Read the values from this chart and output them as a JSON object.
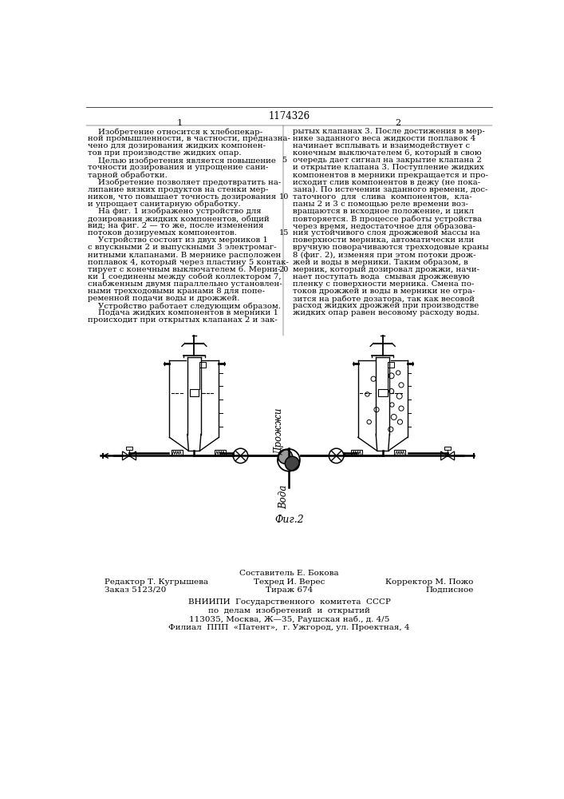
{
  "patent_number": "1174326",
  "col1_header": "1",
  "col2_header": "2",
  "col1_text": [
    "    Изобретение относится к хлебопекар-",
    "ной промышленности, в частности, предназна-",
    "чено для дозирования жидких компонен-",
    "тов при производстве жидких опар.",
    "    Целью изобретения является повышение",
    "точности дозирования и упрощение сани-",
    "тарной обработки.",
    "    Изобретение позволяет предотвратить на-",
    "липание вязких продуктов на стенки мер-",
    "ников, что повышает точность дозирования",
    "и упрощает санитарную обработку.",
    "    На фиг. 1 изображено устройство для",
    "дозирования жидких компонентов, общий",
    "вид; на фиг. 2 — то же, после изменения",
    "потоков дозируемых компонентов.",
    "    Устройство состоит из двух мерников 1",
    "с впускными 2 и выпускными 3 электромаг-",
    "нитными клапанами. В мернике расположен",
    "поплавок 4, который через пластину 5 контак-",
    "тирует с конечным выключателем 6. Мерни-",
    "ки 1 соединены между собой коллектором 7,",
    "снабженным двумя параллельно установлен-",
    "ными трехходовыми кранами 8 для попе-",
    "ременной подачи воды и дрожжей.",
    "    Устройство работает следующим образом.",
    "    Подача жидких компонентов в мерники 1",
    "происходит при открытых клапанах 2 и зак-"
  ],
  "col2_text": [
    "рытых клапанах 3. После достижения в мер-",
    "нике заданного веса жидкости поплавок 4",
    "начинает всплывать и взаимодействует с",
    "конечным выключателем 6, который в свою",
    "очередь дает сигнал на закрытие клапана 2",
    "и открытие клапана 3. Поступление жидких",
    "компонентов в мерники прекращается и про-",
    "исходит слив компонентов в дежу (не пока-",
    "зана). По истечении заданного времени, дос-",
    "таточного  для  слива  компонентов,  кла-",
    "паны 2 и 3 с помощью реле времени воз-",
    "вращаются в исходное положение, и цикл",
    "повторяется. В процессе работы устройства",
    "через время, недостаточное для образова-",
    "ния устойчивого слоя дрожжевой массы на",
    "поверхности мерника, автоматически или",
    "вручную поворачиваются трехходовые краны",
    "8 (фиг. 2), изменяя при этом потоки дрож-",
    "жей и воды в мерники. Таким образом, в",
    "мерник, который дозировал дрожжи, начи-",
    "нает поступать вода  смывая дрожжевую",
    "пленку с поверхности мерника. Смена по-",
    "токов дрожжей и воды в мерники не отра-",
    "зится на работе дозатора, так как весовой",
    "расход жидких дрожжей при производстве",
    "жидких опар равен весовому расходу воды."
  ],
  "line_numbers": [
    5,
    10,
    15,
    20
  ],
  "line_number_rows": [
    4,
    9,
    14,
    19
  ],
  "fig_caption": "Фиг.2",
  "label_drozhzhi": "Дрожжи",
  "label_voda": "Вода",
  "footer_sestavitel": "Составитель Е. Бокова",
  "footer_redaktor": "Редактор Т. Кугрышева",
  "footer_tekhred": "Техред И. Верес",
  "footer_korrektor": "Корректор М. Пожо",
  "footer_zakaz": "Заказ 5123/20",
  "footer_tirazh": "Тираж 674",
  "footer_podpisnoe": "Подписное",
  "footer_org1": "ВНИИПИ  Государственного  комитета  СССР",
  "footer_org2": "по  делам  изобретений  и  открытий",
  "footer_org3": "113035, Москва, Ж—35, Раушская наб., д. 4/5",
  "footer_org4": "Филиал  ППП  «Патент»,  г. Ужгород, ул. Проектная, 4",
  "bg_color": "#ffffff",
  "text_color": "#000000"
}
